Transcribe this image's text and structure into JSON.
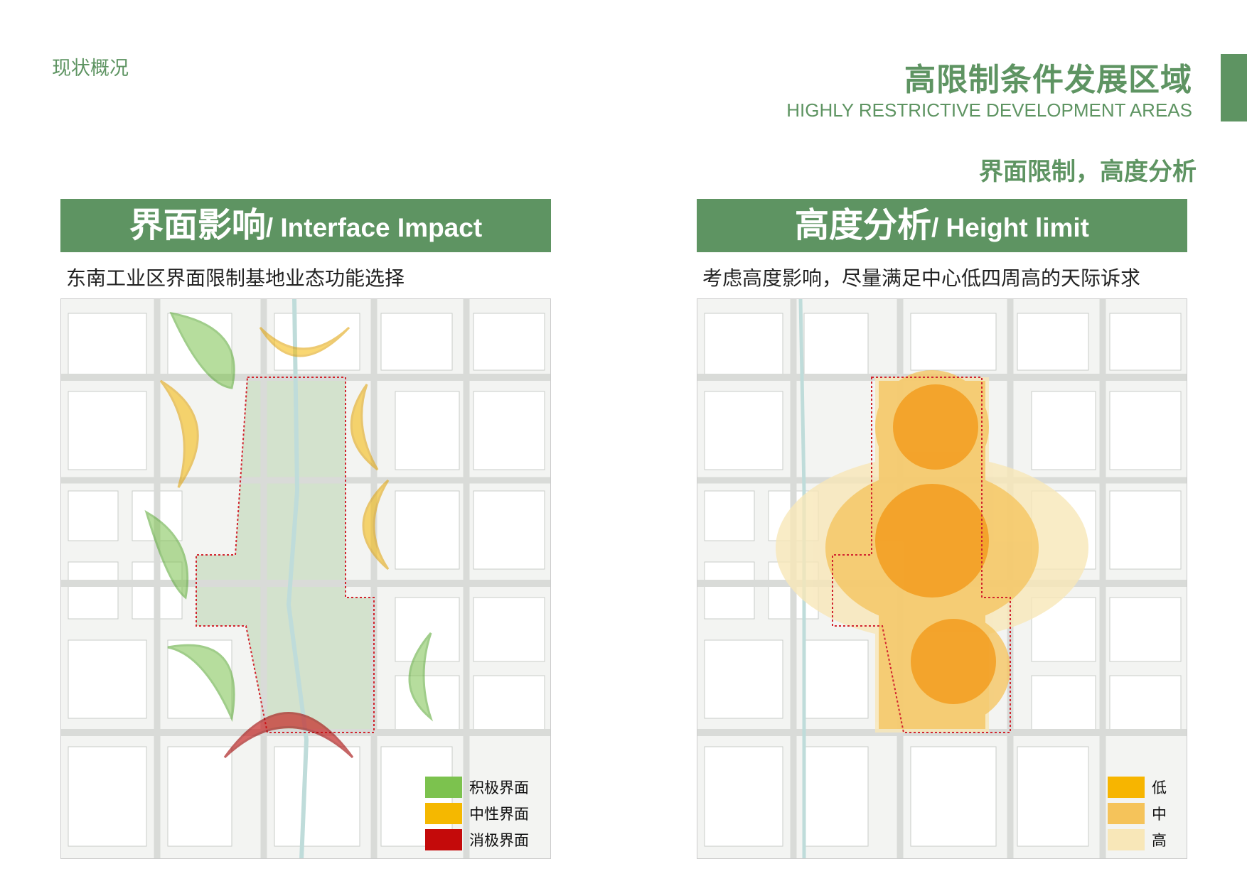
{
  "header": {
    "section_tag": "现状概况",
    "title": "高限制条件发展区域",
    "subtitle": "HIGHLY RESTRICTIVE DEVELOPMENT AREAS",
    "analysis_heading": "界面限制，高度分析"
  },
  "colors": {
    "brand_green": "#5e9462",
    "positive": "#7cc24e",
    "neutral": "#f5b800",
    "negative": "#c40a0a",
    "height_low": "#f7b500",
    "height_mid": "#f5c35a",
    "height_high": "#f8e7b8",
    "boundary": "#d2252f"
  },
  "left_panel": {
    "banner_zh": "界面影响",
    "banner_en": "/ Interface Impact",
    "caption": "东南工业区界面限制基地业态功能选择",
    "legend": [
      {
        "label": "积极界面",
        "color": "#7cc24e"
      },
      {
        "label": "中性界面",
        "color": "#f5b800"
      },
      {
        "label": "消极界面",
        "color": "#c40a0a"
      }
    ]
  },
  "right_panel": {
    "banner_zh": "高度分析",
    "banner_en": "/ Height limit",
    "caption": "考虑高度影响，尽量满足中心低四周高的天际诉求",
    "legend": [
      {
        "label": "低",
        "color": "#f7b500"
      },
      {
        "label": "中",
        "color": "#f5c35a"
      },
      {
        "label": "高",
        "color": "#f8e7b8"
      }
    ]
  }
}
